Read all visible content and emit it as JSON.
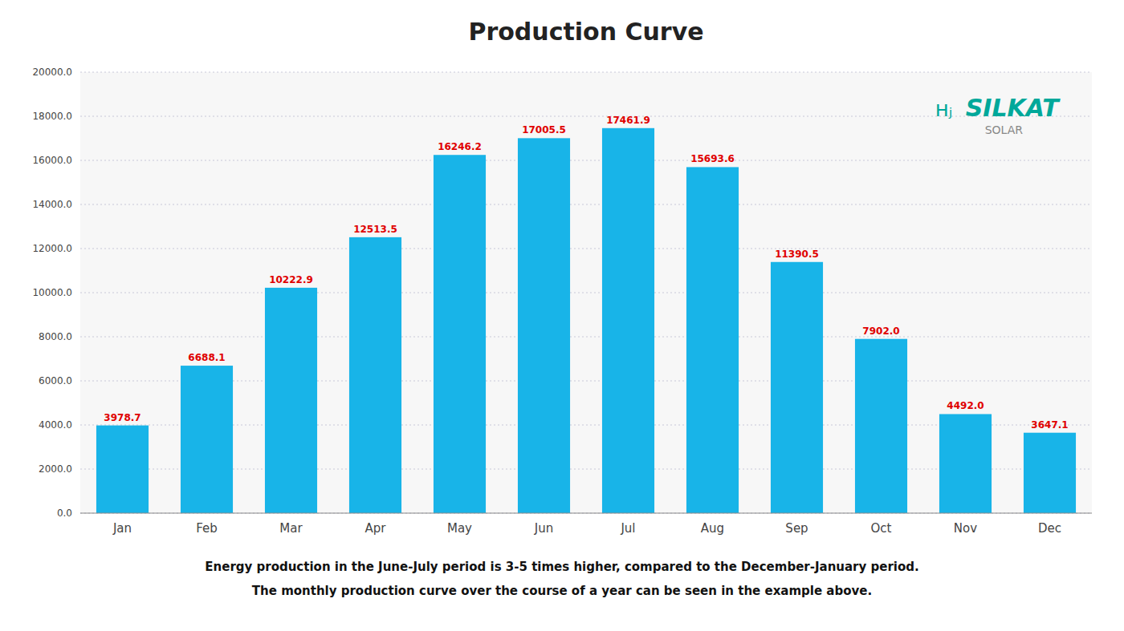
{
  "chart_data": {
    "type": "bar",
    "title": "Production Curve",
    "categories": [
      "Jan",
      "Feb",
      "Mar",
      "Apr",
      "May",
      "Jun",
      "Jul",
      "Aug",
      "Sep",
      "Oct",
      "Nov",
      "Dec"
    ],
    "values": [
      3978.7,
      6688.1,
      10222.9,
      12513.5,
      16246.2,
      17005.5,
      17461.9,
      15693.6,
      11390.5,
      7902.0,
      4492.0,
      3647.1
    ],
    "value_labels": [
      "3978.7",
      "6688.1",
      "10222.9",
      "12513.5",
      "16246.2",
      "17005.5",
      "17461.9",
      "15693.6",
      "11390.5",
      "7902.0",
      "4492.0",
      "3647.1"
    ],
    "color": "#18B4E8",
    "ylim": [
      0,
      20000
    ],
    "yticks": [
      {
        "value": 0,
        "label": "0.0"
      },
      {
        "value": 2000,
        "label": "2000.0"
      },
      {
        "value": 4000,
        "label": "4000.0"
      },
      {
        "value": 6000,
        "label": "6000.0"
      },
      {
        "value": 8000,
        "label": "8000.0"
      },
      {
        "value": 10000,
        "label": "10000.0"
      },
      {
        "value": 12000,
        "label": "12000.0"
      },
      {
        "value": 14000,
        "label": "14000.0"
      },
      {
        "value": 16000,
        "label": "16000.0"
      },
      {
        "value": 18000,
        "label": "18000.0"
      },
      {
        "value": 20000,
        "label": "20000.0"
      }
    ],
    "grid": true,
    "data_labels": true,
    "annotations": [
      "ʜⱼ",
      "SILKAT",
      "SOLAR",
      "Energy production in the June-July period is 3-5 times higher, compared to the December-January period.",
      "The monthly production curve over the course of a year can be seen in the example above."
    ]
  }
}
